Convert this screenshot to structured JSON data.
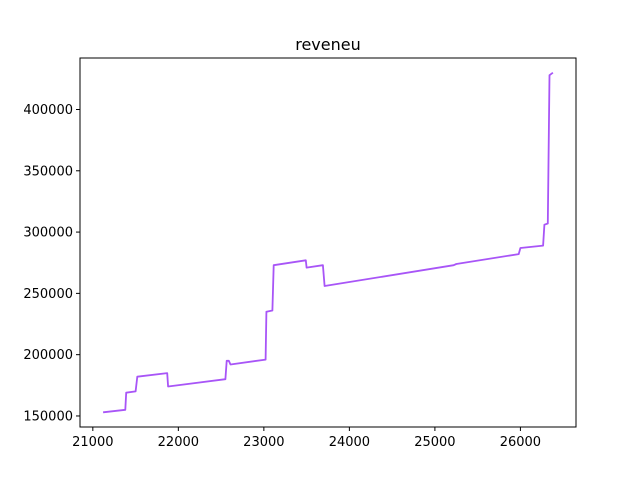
{
  "chart_data": {
    "type": "line",
    "title": "reveneu",
    "xlabel": "",
    "ylabel": "",
    "xlim": [
      20850,
      26650
    ],
    "ylim": [
      141000,
      442000
    ],
    "xticks": [
      21000,
      22000,
      23000,
      24000,
      25000,
      26000
    ],
    "yticks": [
      150000,
      200000,
      250000,
      300000,
      350000,
      400000
    ],
    "grid": false,
    "legend": "none",
    "series": [
      {
        "color": "#a855f7",
        "x": [
          21120,
          21380,
          21390,
          21500,
          21520,
          21870,
          21880,
          22550,
          22565,
          22590,
          22610,
          23020,
          23030,
          23100,
          23115,
          23490,
          23500,
          23690,
          23710,
          25220,
          25250,
          25980,
          26000,
          26265,
          26280,
          26320,
          26340,
          26380
        ],
        "y": [
          153000,
          155000,
          169000,
          170000,
          182000,
          185000,
          174000,
          180000,
          195000,
          195000,
          192000,
          196000,
          235000,
          236000,
          273000,
          277000,
          271000,
          273000,
          256000,
          273000,
          274000,
          282000,
          287000,
          289000,
          306000,
          307000,
          428000,
          430000
        ]
      }
    ]
  }
}
